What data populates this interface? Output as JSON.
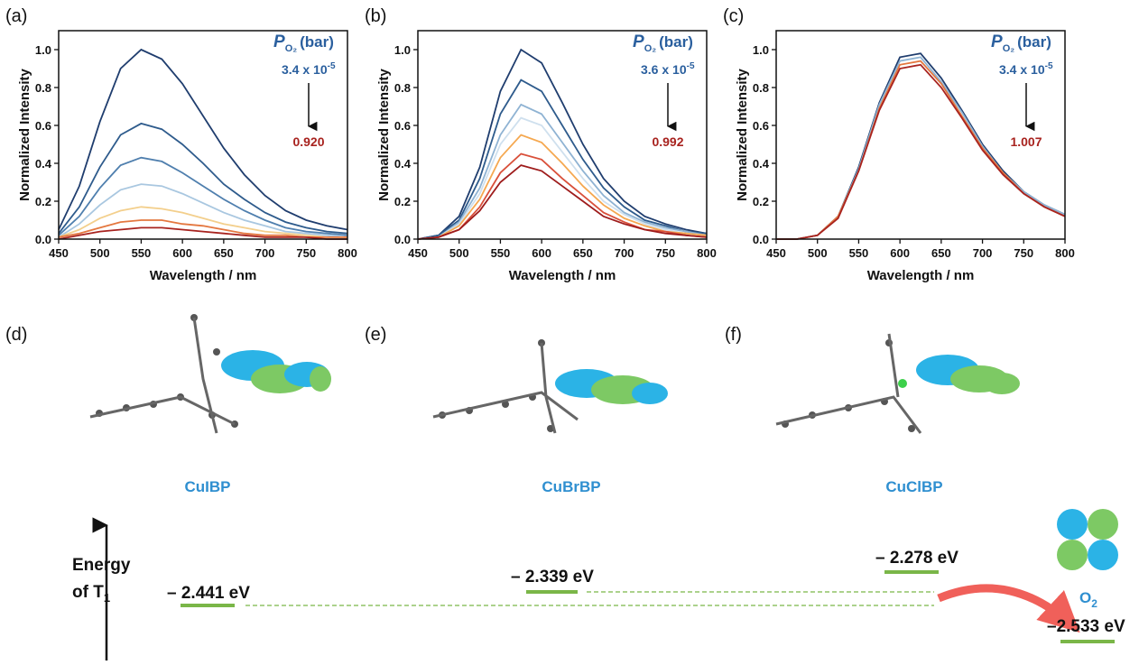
{
  "chart_data": [
    {
      "type": "line",
      "panel_label": "(a)",
      "xlabel": "Wavelength / nm",
      "ylabel": "Normalized Intensity",
      "legend_title": "P",
      "legend_title_sub": "O₂",
      "legend_title_unit": "(bar)",
      "start_label": "3.4 x 10",
      "start_label_sup": "-5",
      "end_label": "0.920",
      "x": [
        450,
        475,
        500,
        525,
        550,
        575,
        600,
        625,
        650,
        675,
        700,
        725,
        750,
        775,
        800
      ],
      "xlim": [
        450,
        800
      ],
      "xticks": [
        450,
        500,
        550,
        600,
        650,
        700,
        750,
        800
      ],
      "ylim": [
        0,
        1.1
      ],
      "yticks": [
        {
          "value": 0,
          "label": "0.0"
        },
        {
          "value": 0.2,
          "label": "0.2"
        },
        {
          "value": 0.4,
          "label": "0.4"
        },
        {
          "value": 0.6,
          "label": "0.6"
        },
        {
          "value": 0.8,
          "label": "0.8"
        },
        {
          "value": 1,
          "label": "1.0"
        }
      ],
      "series": [
        {
          "color": "#1f3d6e",
          "values": [
            0.05,
            0.28,
            0.62,
            0.9,
            1.0,
            0.95,
            0.82,
            0.65,
            0.48,
            0.34,
            0.23,
            0.15,
            0.1,
            0.07,
            0.05
          ]
        },
        {
          "color": "#2e5b8c",
          "values": [
            0.03,
            0.17,
            0.38,
            0.55,
            0.61,
            0.58,
            0.5,
            0.4,
            0.29,
            0.21,
            0.14,
            0.09,
            0.06,
            0.04,
            0.03
          ]
        },
        {
          "color": "#4f7fae",
          "values": [
            0.02,
            0.12,
            0.27,
            0.39,
            0.43,
            0.41,
            0.35,
            0.28,
            0.21,
            0.15,
            0.1,
            0.06,
            0.04,
            0.03,
            0.02
          ]
        },
        {
          "color": "#a9c7e0",
          "values": [
            0.01,
            0.08,
            0.18,
            0.26,
            0.29,
            0.28,
            0.24,
            0.19,
            0.14,
            0.1,
            0.07,
            0.04,
            0.03,
            0.02,
            0.01
          ]
        },
        {
          "color": "#f3cf8c",
          "values": [
            0.01,
            0.05,
            0.11,
            0.15,
            0.17,
            0.16,
            0.14,
            0.11,
            0.08,
            0.06,
            0.04,
            0.03,
            0.02,
            0.01,
            0.01
          ]
        },
        {
          "color": "#e4773f",
          "values": [
            0.01,
            0.03,
            0.06,
            0.09,
            0.1,
            0.1,
            0.08,
            0.07,
            0.05,
            0.03,
            0.02,
            0.02,
            0.01,
            0.01,
            0.01
          ]
        },
        {
          "color": "#a8231f",
          "values": [
            0,
            0.02,
            0.04,
            0.05,
            0.06,
            0.06,
            0.05,
            0.04,
            0.03,
            0.02,
            0.01,
            0.01,
            0.01,
            0,
            0
          ]
        }
      ]
    },
    {
      "type": "line",
      "panel_label": "(b)",
      "xlabel": "Wavelength / nm",
      "ylabel": "Normalized Intensity",
      "legend_title": "P",
      "legend_title_sub": "O₂",
      "legend_title_unit": "(bar)",
      "start_label": "3.6 x 10",
      "start_label_sup": "-5",
      "end_label": "0.992",
      "x": [
        450,
        475,
        500,
        525,
        550,
        575,
        600,
        625,
        650,
        675,
        700,
        725,
        750,
        775,
        800
      ],
      "xlim": [
        450,
        800
      ],
      "xticks": [
        450,
        500,
        550,
        600,
        650,
        700,
        750,
        800
      ],
      "ylim": [
        0,
        1.1
      ],
      "yticks": [
        {
          "value": 0,
          "label": "0.0"
        },
        {
          "value": 0.2,
          "label": "0.2"
        },
        {
          "value": 0.4,
          "label": "0.4"
        },
        {
          "value": 0.6,
          "label": "0.6"
        },
        {
          "value": 0.8,
          "label": "0.8"
        },
        {
          "value": 1,
          "label": "1.0"
        }
      ],
      "series": [
        {
          "color": "#1f3d6e",
          "values": [
            0,
            0.02,
            0.12,
            0.38,
            0.78,
            1.0,
            0.93,
            0.72,
            0.5,
            0.32,
            0.2,
            0.12,
            0.08,
            0.05,
            0.03
          ]
        },
        {
          "color": "#2e5b8c",
          "values": [
            0,
            0.02,
            0.1,
            0.32,
            0.66,
            0.84,
            0.78,
            0.6,
            0.42,
            0.27,
            0.17,
            0.1,
            0.07,
            0.04,
            0.03
          ]
        },
        {
          "color": "#8fb3d3",
          "values": [
            0,
            0.01,
            0.09,
            0.27,
            0.55,
            0.71,
            0.66,
            0.51,
            0.36,
            0.23,
            0.14,
            0.09,
            0.06,
            0.04,
            0.02
          ]
        },
        {
          "color": "#cfe0ee",
          "values": [
            0,
            0.01,
            0.08,
            0.24,
            0.5,
            0.64,
            0.6,
            0.46,
            0.32,
            0.2,
            0.13,
            0.08,
            0.05,
            0.03,
            0.02
          ]
        },
        {
          "color": "#f5a850",
          "values": [
            0,
            0.01,
            0.07,
            0.21,
            0.43,
            0.55,
            0.51,
            0.4,
            0.28,
            0.18,
            0.11,
            0.07,
            0.04,
            0.03,
            0.02
          ]
        },
        {
          "color": "#d9503a",
          "values": [
            0,
            0.01,
            0.05,
            0.17,
            0.35,
            0.45,
            0.42,
            0.32,
            0.23,
            0.14,
            0.09,
            0.05,
            0.04,
            0.02,
            0.01
          ]
        },
        {
          "color": "#9e1c1c",
          "values": [
            0,
            0.01,
            0.05,
            0.15,
            0.3,
            0.39,
            0.36,
            0.28,
            0.2,
            0.12,
            0.08,
            0.05,
            0.03,
            0.02,
            0.01
          ]
        }
      ]
    },
    {
      "type": "line",
      "panel_label": "(c)",
      "xlabel": "Wavelength / nm",
      "ylabel": "Normalized Intensity",
      "legend_title": "P",
      "legend_title_sub": "O₂",
      "legend_title_unit": "(bar)",
      "start_label": "3.4 x 10",
      "start_label_sup": "-5",
      "end_label": "1.007",
      "x": [
        450,
        475,
        500,
        525,
        550,
        575,
        600,
        625,
        650,
        675,
        700,
        725,
        750,
        775,
        800
      ],
      "xlim": [
        450,
        800
      ],
      "xticks": [
        450,
        500,
        550,
        600,
        650,
        700,
        750,
        800
      ],
      "ylim": [
        0,
        1.1
      ],
      "yticks": [
        {
          "value": 0,
          "label": "0.0"
        },
        {
          "value": 0.2,
          "label": "0.2"
        },
        {
          "value": 0.4,
          "label": "0.4"
        },
        {
          "value": 0.6,
          "label": "0.6"
        },
        {
          "value": 0.8,
          "label": "0.8"
        },
        {
          "value": 1,
          "label": "1.0"
        }
      ],
      "series": [
        {
          "color": "#1f3d6e",
          "values": [
            0,
            0,
            0.02,
            0.12,
            0.38,
            0.72,
            0.96,
            0.98,
            0.85,
            0.68,
            0.5,
            0.36,
            0.25,
            0.18,
            0.13
          ]
        },
        {
          "color": "#8fb3d3",
          "values": [
            0,
            0,
            0.02,
            0.12,
            0.37,
            0.71,
            0.94,
            0.96,
            0.83,
            0.67,
            0.49,
            0.35,
            0.25,
            0.18,
            0.13
          ]
        },
        {
          "color": "#e4773f",
          "values": [
            0,
            0,
            0.02,
            0.12,
            0.36,
            0.69,
            0.92,
            0.94,
            0.82,
            0.65,
            0.48,
            0.35,
            0.24,
            0.17,
            0.12
          ]
        },
        {
          "color": "#a8231f",
          "values": [
            0,
            0,
            0.02,
            0.11,
            0.36,
            0.68,
            0.9,
            0.92,
            0.8,
            0.64,
            0.47,
            0.34,
            0.24,
            0.17,
            0.12
          ]
        }
      ]
    }
  ],
  "molecules": [
    {
      "panel_label": "(d)",
      "name": "CuIBP"
    },
    {
      "panel_label": "(e)",
      "name": "CuBrBP"
    },
    {
      "panel_label": "(f)",
      "name": "CuClBP"
    }
  ],
  "energy_diagram": {
    "axis_label": "Energy",
    "axis_label2": "of T",
    "axis_label_sub": "1",
    "levels": [
      "– 2.441 eV",
      "– 2.339 eV",
      "– 2.278 eV"
    ],
    "o2_label": "O",
    "o2_label_sub": "2",
    "o2_level": "–2.533 eV"
  }
}
